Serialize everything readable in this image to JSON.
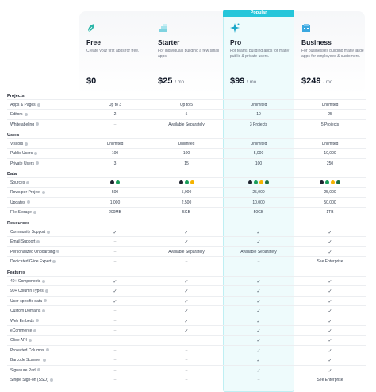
{
  "popular_label": "Popular",
  "plans": [
    {
      "name": "Free",
      "desc": "Create your first apps for free.",
      "price": "$0",
      "per": "",
      "icon": "leaf-icon",
      "color": "#2bb5a8"
    },
    {
      "name": "Starter",
      "desc": "For individuals building a few small apps.",
      "price": "$25",
      "per": "/ mo",
      "icon": "steps-icon",
      "color": "#7fd3e0"
    },
    {
      "name": "Pro",
      "desc": "For teams building apps for many public & private users.",
      "price": "$99",
      "per": "/ mo",
      "icon": "sparkle-icon",
      "color": "#1aa7c9"
    },
    {
      "name": "Business",
      "desc": "For businesses building many large apps for employees & customers.",
      "price": "$249",
      "per": "/ mo",
      "icon": "building-icon",
      "color": "#3aa8e0"
    }
  ],
  "sections": [
    {
      "title": "Projects",
      "rows": [
        {
          "label": "Apps & Pages",
          "cells": [
            "Up to 3",
            "Up to 5",
            "Unlimited",
            "Unlimited"
          ]
        },
        {
          "label": "Editors",
          "cells": [
            "2",
            "5",
            "10",
            "25"
          ]
        },
        {
          "label": "Whitelabeling",
          "cells": [
            "–",
            "Available Separately",
            "3 Projects",
            "5 Projects"
          ]
        }
      ]
    },
    {
      "title": "Users",
      "rows": [
        {
          "label": "Visitors",
          "cells": [
            "Unlimited",
            "Unlimited",
            "Unlimited",
            "Unlimited"
          ]
        },
        {
          "label": "Public Users",
          "cells": [
            "100",
            "100",
            "5,000",
            "10,000"
          ]
        },
        {
          "label": "Private Users",
          "cells": [
            "3",
            "15",
            "100",
            "250"
          ]
        }
      ]
    },
    {
      "title": "Data",
      "rows": [
        {
          "label": "Sources",
          "cells": [
            "@src2",
            "@src3",
            "@src4",
            "@src4"
          ]
        },
        {
          "label": "Rows per Project",
          "cells": [
            "500",
            "5,000",
            "25,000",
            "25,000"
          ]
        },
        {
          "label": "Updates",
          "cells": [
            "1,000",
            "2,500",
            "10,000",
            "50,000"
          ]
        },
        {
          "label": "File Storage",
          "cells": [
            "200MB",
            "5GB",
            "50GB",
            "1TB"
          ]
        }
      ]
    },
    {
      "title": "Resources",
      "rows": [
        {
          "label": "Community Support",
          "cells": [
            "✓",
            "✓",
            "✓",
            "✓"
          ]
        },
        {
          "label": "Email Support",
          "cells": [
            "–",
            "✓",
            "✓",
            "✓"
          ]
        },
        {
          "label": "Personalized Onboarding",
          "cells": [
            "–",
            "Available Separately",
            "Available Separately",
            "✓"
          ]
        },
        {
          "label": "Dedicated Glide Expert",
          "cells": [
            "–",
            "–",
            "–",
            "See Enterprise"
          ]
        }
      ]
    },
    {
      "title": "Features",
      "rows": [
        {
          "label": "40+ Components",
          "cells": [
            "✓",
            "✓",
            "✓",
            "✓"
          ]
        },
        {
          "label": "90+ Column Types",
          "cells": [
            "✓",
            "✓",
            "✓",
            "✓"
          ]
        },
        {
          "label": "User-specific data",
          "cells": [
            "✓",
            "✓",
            "✓",
            "✓"
          ]
        },
        {
          "label": "Custom Domains",
          "cells": [
            "–",
            "✓",
            "✓",
            "✓"
          ]
        },
        {
          "label": "Web Embeds",
          "cells": [
            "–",
            "✓",
            "✓",
            "✓"
          ]
        },
        {
          "label": "eCommerce",
          "cells": [
            "–",
            "✓",
            "✓",
            "✓"
          ]
        },
        {
          "label": "Glide API",
          "cells": [
            "–",
            "–",
            "✓",
            "✓"
          ]
        },
        {
          "label": "Protected Columns",
          "cells": [
            "–",
            "–",
            "✓",
            "✓"
          ]
        },
        {
          "label": "Barcode Scanner",
          "cells": [
            "–",
            "–",
            "✓",
            "✓"
          ]
        },
        {
          "label": "Signature Pad",
          "cells": [
            "–",
            "–",
            "✓",
            "✓"
          ]
        },
        {
          "label": "Single Sign-on (SSO)",
          "cells": [
            "–",
            "–",
            "–",
            "See Enterprise"
          ]
        }
      ]
    }
  ],
  "source_icons": [
    "glide-source-icon",
    "google-sheets-icon",
    "airtable-icon",
    "excel-icon"
  ],
  "colors": {
    "accent": "#26c6da",
    "pro_bg": "#eefbfc"
  }
}
